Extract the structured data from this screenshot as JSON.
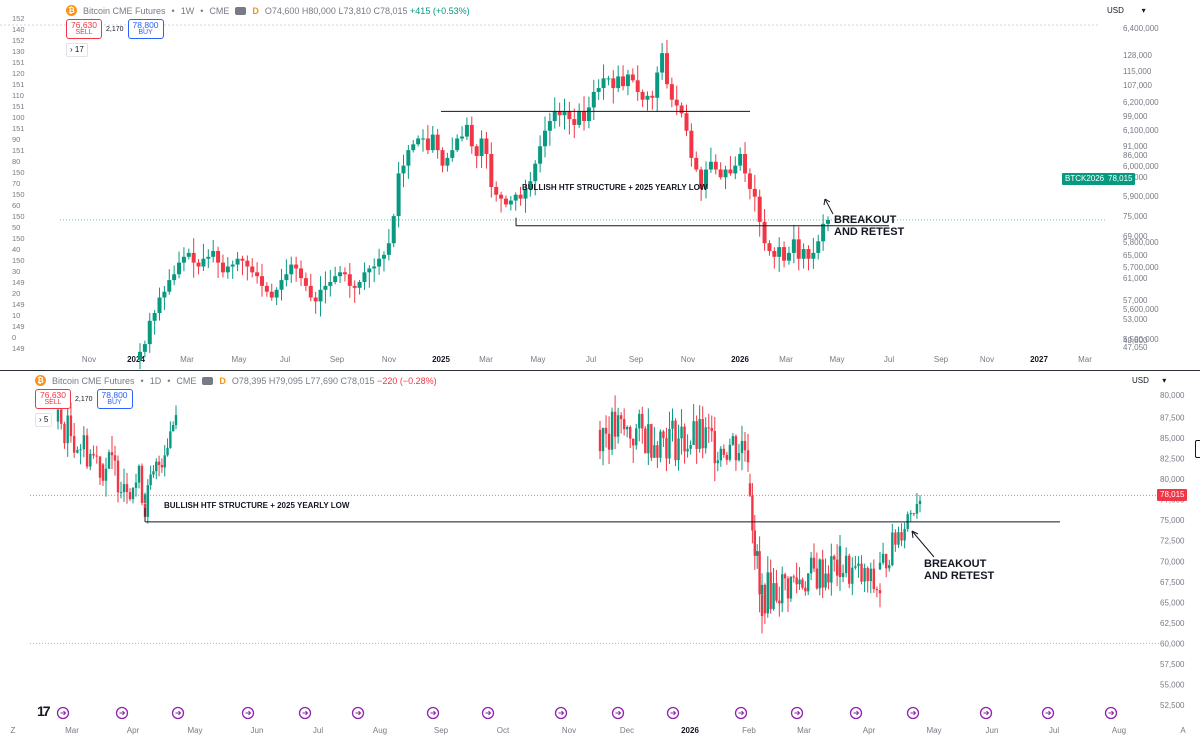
{
  "colors": {
    "up": "#089981",
    "down": "#f23645",
    "ink": "#131722",
    "muted": "#787b86",
    "price_line": "#f23645",
    "accent": "#f7931a",
    "buy": "#2962ff",
    "purple": "#8e24aa"
  },
  "top_chart": {
    "symbol": "Bitcoin CME Futures",
    "interval": "1W",
    "exchange": "CME",
    "d_badge": "D",
    "open": "O74,600",
    "high": "H80,000",
    "low": "L73,810",
    "close": "C78,015",
    "change": "+415 (+0.53%)",
    "sell_price": "76,630",
    "sell_label": "SELL",
    "spread": "2,170",
    "buy_price": "78,800",
    "buy_label": "BUY",
    "indicator_count": "17",
    "currency": "USD",
    "currency_arrow": "▾",
    "right_axis": [
      "6,400,000",
      "128,000",
      "115,000",
      "107,000",
      "6,200,000",
      "99,000",
      "6,100,000",
      "91,000",
      "86,000",
      "6,000,000",
      "81,000",
      "5,900,000",
      "75,000",
      "69,000",
      "5,800,000",
      "65,000",
      "5,700,000",
      "61,000",
      "57,000",
      "5,600,000",
      "53,000",
      "5,500,000",
      "49,800",
      "47,050",
      "5,400,000"
    ],
    "left_axis": [
      "152",
      "140",
      "152",
      "130",
      "151",
      "120",
      "151",
      "110",
      "151",
      "100",
      "151",
      "90",
      "151",
      "80",
      "150",
      "70",
      "150",
      "60",
      "150",
      "50",
      "150",
      "40",
      "150",
      "30",
      "149",
      "20",
      "149",
      "10",
      "149",
      "0",
      "149"
    ],
    "x_labels": [
      "Nov",
      "2024",
      "Mar",
      "May",
      "Jul",
      "Sep",
      "Nov",
      "2025",
      "Mar",
      "May",
      "Jul",
      "Sep",
      "Nov",
      "2026",
      "Mar",
      "May",
      "Jul",
      "Sep",
      "Nov",
      "2027",
      "Mar"
    ],
    "ticker_tag": "BTCK2026",
    "price_tag": "78,015",
    "structure_label": "BULLISH HTF STRUCTURE + 2025 YEARLY LOW",
    "breakout_line1": "BREAKOUT",
    "breakout_line2": "AND RETEST",
    "chart_data": {
      "type": "candlestick",
      "interval": "1W",
      "last_close": 78015,
      "ylim": [
        47050,
        128000
      ],
      "levels": [
        {
          "value": 106000
        },
        {
          "value": 76500
        }
      ],
      "closes": [
        44000,
        46000,
        52000,
        54000,
        58000,
        59500,
        62500,
        64000,
        67000,
        68500,
        69500,
        67000,
        66000,
        68000,
        68500,
        70000,
        67000,
        64500,
        66000,
        66500,
        68000,
        67500,
        66000,
        64500,
        63500,
        61000,
        59500,
        58000,
        60000,
        62500,
        64000,
        66500,
        65500,
        63000,
        61000,
        58000,
        57000,
        60000,
        61000,
        62000,
        63500,
        64500,
        64000,
        61000,
        60500,
        62000,
        64500,
        65500,
        66000,
        68000,
        69000,
        72000,
        79000,
        90000,
        92000,
        96000,
        97500,
        99000,
        99000,
        96000,
        100000,
        96000,
        92000,
        94000,
        96000,
        99000,
        99500,
        102500,
        97000,
        94500,
        99000,
        95000,
        86500,
        84500,
        83500,
        82000,
        83000,
        84500,
        83500,
        86000,
        88000,
        92500,
        97000,
        101000,
        103500,
        106000,
        105000,
        106000,
        104000,
        102500,
        106000,
        103500,
        107000,
        111000,
        112000,
        114500,
        114500,
        112000,
        115000,
        112500,
        115500,
        114000,
        111000,
        109000,
        110000,
        109500,
        116000,
        121000,
        113000,
        109000,
        107500,
        105500,
        101000,
        94000,
        91000,
        86000,
        91000,
        93000,
        91000,
        89000,
        91000,
        90000,
        92000,
        95000,
        90000,
        86000,
        84000,
        77500,
        72000,
        70000,
        68500,
        71000,
        67500,
        69500,
        73000,
        68000,
        70500,
        68000,
        69500,
        72500,
        77000,
        78015
      ]
    }
  },
  "bottom_chart": {
    "symbol": "Bitcoin CME Futures",
    "interval": "1D",
    "exchange": "CME",
    "d_badge": "D",
    "open": "O78,395",
    "high": "H79,095",
    "low": "L77,690",
    "close": "C78,015",
    "change": "−220 (−0.28%)",
    "sell_price": "76,630",
    "sell_label": "SELL",
    "spread": "2,170",
    "buy_price": "78,800",
    "buy_label": "BUY",
    "indicator_count": "5",
    "currency": "USD",
    "currency_arrow": "▾",
    "right_axis": [
      "80,000",
      "87,500",
      "85,000",
      "82,500",
      "80,000",
      "77,500",
      "75,000",
      "72,500",
      "70,000",
      "67,500",
      "65,000",
      "62,500",
      "60,000",
      "57,500",
      "55,000",
      "52,500"
    ],
    "x_labels": [
      "Z",
      "Mar",
      "Apr",
      "May",
      "Jun",
      "Jul",
      "Aug",
      "Sep",
      "Oct",
      "Nov",
      "Dec",
      "2026",
      "Feb",
      "Mar",
      "Apr",
      "May",
      "Jun",
      "Jul",
      "Aug",
      "A"
    ],
    "price_tag": "78,015",
    "structure_label": "BULLISH HTF STRUCTURE + 2025 YEARLY LOW",
    "breakout_line1": "BREAKOUT",
    "breakout_line2": "AND RETEST",
    "chart_data": {
      "type": "candlestick",
      "interval": "1D",
      "last_close": 78015,
      "ylim": [
        52500,
        90000
      ],
      "levels": [
        {
          "value": 74800
        },
        {
          "value": 60000
        }
      ],
      "clusters": [
        {
          "from": "2025-02",
          "to": "2025-04",
          "range": [
            76500,
            90000
          ]
        },
        {
          "from": "2025-04",
          "to": "2025-04",
          "range": [
            76500,
            92000
          ]
        },
        {
          "from": "2025-11",
          "to": "2026-01",
          "range": [
            80500,
            92000
          ]
        },
        {
          "from": "2026-02",
          "to": "2026-03",
          "range": [
            60000,
            79500
          ]
        },
        {
          "from": "2026-03",
          "to": "2026-04",
          "range": [
            64000,
            72000
          ]
        },
        {
          "from": "2026-04",
          "to": "2026-04",
          "range": [
            70000,
            79500
          ]
        }
      ]
    }
  },
  "footer": {
    "logo_text": "17"
  }
}
